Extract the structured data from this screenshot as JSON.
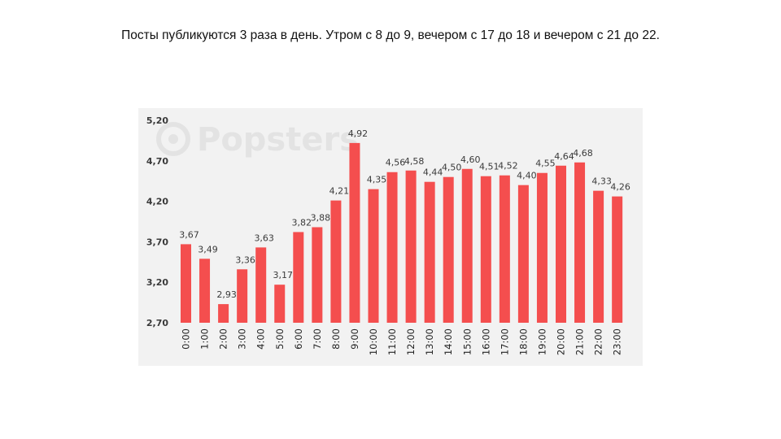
{
  "caption": "Посты публикуются 3 раза в день. Утром с 8 до 9, вечером с 17 до 18 и вечером с 21 до 22.",
  "watermark": "Popsters",
  "colors": {
    "bar": "#f44e4e",
    "plot_background": "#f2f2f2",
    "label_text": "#3a3a3a",
    "watermark": "#e3e3e3"
  },
  "chart_data": {
    "type": "bar",
    "title": "",
    "xlabel": "",
    "ylabel": "",
    "categories": [
      "0:00",
      "1:00",
      "2:00",
      "3:00",
      "4:00",
      "5:00",
      "6:00",
      "7:00",
      "8:00",
      "9:00",
      "10:00",
      "11:00",
      "12:00",
      "13:00",
      "14:00",
      "15:00",
      "16:00",
      "17:00",
      "18:00",
      "19:00",
      "20:00",
      "21:00",
      "22:00",
      "23:00"
    ],
    "values": [
      3.67,
      3.49,
      2.93,
      3.36,
      3.63,
      3.17,
      3.82,
      3.88,
      4.21,
      4.92,
      4.35,
      4.56,
      4.58,
      4.44,
      4.5,
      4.6,
      4.51,
      4.52,
      4.4,
      4.55,
      4.64,
      4.68,
      4.33,
      4.26
    ],
    "value_labels": [
      "3,67",
      "3,49",
      "2,93",
      "3,36",
      "3,63",
      "3,17",
      "3,82",
      "3,88",
      "4,21",
      "4,92",
      "4,35",
      "4,56",
      "4,58",
      "4,44",
      "4,50",
      "4,60",
      "4,51",
      "4,52",
      "4,40",
      "4,55",
      "4,64",
      "4,68",
      "4,33",
      "4,26"
    ],
    "ylim": [
      2.7,
      5.2
    ],
    "yticks": [
      2.7,
      3.2,
      3.7,
      4.2,
      4.7,
      5.2
    ],
    "ytick_labels": [
      "2,70",
      "3,20",
      "3,70",
      "4,20",
      "4,70",
      "5,20"
    ],
    "grid": false,
    "legend": "none"
  }
}
